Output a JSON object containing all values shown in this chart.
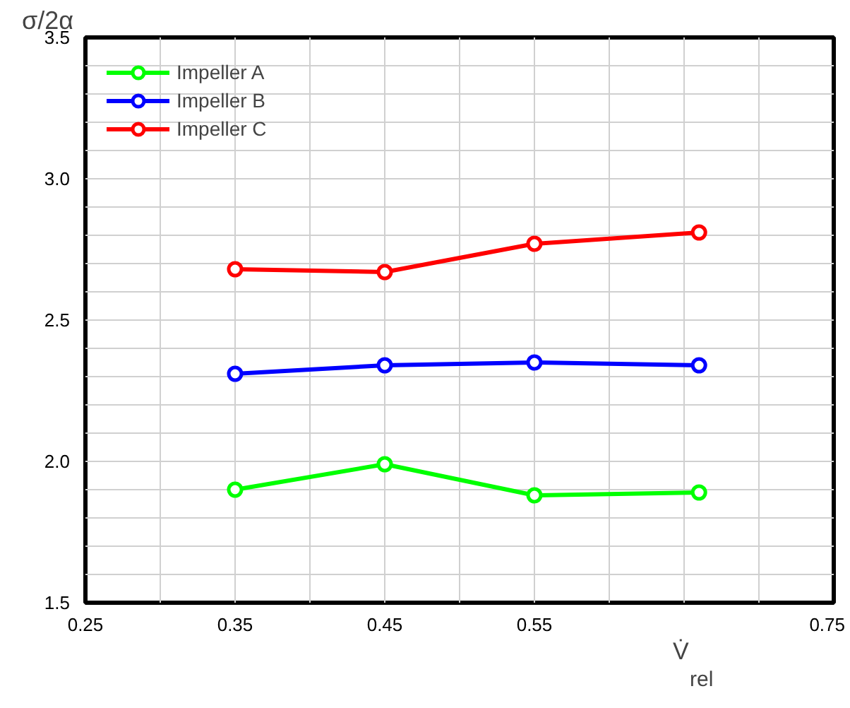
{
  "chart_data": {
    "type": "line",
    "xlabel": "V̇$_{rel}$",
    "ylabel": "σ/2α",
    "x": [
      0.35,
      0.45,
      0.55,
      0.66
    ],
    "series": [
      {
        "name": "Impeller A",
        "color": "#00ff00",
        "values": [
          1.9,
          1.99,
          1.88,
          1.89
        ]
      },
      {
        "name": "Impeller B",
        "color": "#0000ff",
        "values": [
          2.31,
          2.34,
          2.35,
          2.34
        ]
      },
      {
        "name": "Impeller C",
        "color": "#ff0000",
        "values": [
          2.68,
          2.67,
          2.77,
          2.81
        ]
      }
    ],
    "xlim": [
      0.25,
      0.75
    ],
    "xticks": [
      0.25,
      {
        "value": 0.3,
        "label": null
      },
      0.35,
      {
        "value": 0.4,
        "label": null
      },
      0.45,
      {
        "value": 0.5,
        "label": null
      },
      0.55,
      {
        "value": 0.6,
        "label": null
      },
      {
        "value": 0.65,
        "label": null
      },
      {
        "value": 0.7,
        "label": null
      },
      0.75
    ],
    "ylim": [
      1.5,
      3.5
    ],
    "yticks": [
      1.5,
      {
        "value": 1.6,
        "label": null
      },
      {
        "value": 1.7,
        "label": null
      },
      {
        "value": 1.8,
        "label": null
      },
      {
        "value": 1.9,
        "label": null
      },
      {
        "value": 2,
        "label": "2.0"
      },
      {
        "value": 2.1,
        "label": null
      },
      {
        "value": 2.2,
        "label": null
      },
      {
        "value": 2.3,
        "label": null
      },
      {
        "value": 2.4,
        "label": null
      },
      2.5,
      {
        "value": 2.6,
        "label": null
      },
      {
        "value": 2.7,
        "label": null
      },
      {
        "value": 2.8,
        "label": null
      },
      {
        "value": 2.9,
        "label": null
      },
      {
        "value": 3,
        "label": "3.0"
      },
      {
        "value": 3.1,
        "label": null
      },
      {
        "value": 3.2,
        "label": null
      },
      {
        "value": 3.3,
        "label": null
      },
      {
        "value": 3.4,
        "label": null
      },
      3.5
    ],
    "grid": true,
    "legend": "top left",
    "marker": "circle",
    "line_style": "solid"
  }
}
